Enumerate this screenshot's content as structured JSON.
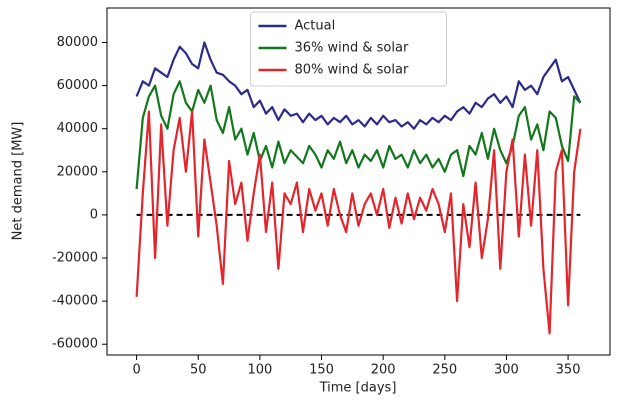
{
  "chart_data": {
    "type": "line",
    "xlabel": "Time [days]",
    "ylabel": "Net demand [MW]",
    "x": [
      0,
      5,
      10,
      15,
      20,
      25,
      30,
      35,
      40,
      45,
      50,
      55,
      60,
      65,
      70,
      75,
      80,
      85,
      90,
      95,
      100,
      105,
      110,
      115,
      120,
      125,
      130,
      135,
      140,
      145,
      150,
      155,
      160,
      165,
      170,
      175,
      180,
      185,
      190,
      195,
      200,
      205,
      210,
      215,
      220,
      225,
      230,
      235,
      240,
      245,
      250,
      255,
      260,
      265,
      270,
      275,
      280,
      285,
      290,
      295,
      300,
      305,
      310,
      315,
      320,
      325,
      330,
      335,
      340,
      345,
      350,
      355,
      360
    ],
    "series": [
      {
        "name": "Actual",
        "color": "#2b2b8c",
        "values": [
          55000,
          62000,
          60000,
          68000,
          66000,
          64000,
          72000,
          78000,
          75000,
          70000,
          68000,
          80000,
          72000,
          66000,
          65000,
          62000,
          60000,
          56000,
          58000,
          50000,
          53000,
          47000,
          50000,
          44000,
          49000,
          46000,
          47000,
          43000,
          47000,
          44000,
          46000,
          42000,
          45000,
          43000,
          46000,
          42000,
          44000,
          41000,
          45000,
          42000,
          46000,
          43000,
          44000,
          41000,
          43000,
          40000,
          44000,
          42000,
          45000,
          43000,
          46000,
          44000,
          48000,
          50000,
          47000,
          52000,
          50000,
          54000,
          56000,
          52000,
          55000,
          50000,
          62000,
          58000,
          60000,
          56000,
          64000,
          68000,
          72000,
          62000,
          64000,
          58000,
          52000
        ]
      },
      {
        "name": "36% wind & solar",
        "color": "#13781c",
        "values": [
          12000,
          45000,
          55000,
          60000,
          46000,
          40000,
          56000,
          62000,
          52000,
          48000,
          58000,
          52000,
          60000,
          44000,
          38000,
          50000,
          35000,
          40000,
          28000,
          38000,
          25000,
          32000,
          22000,
          34000,
          24000,
          30000,
          27000,
          24000,
          32000,
          28000,
          22000,
          30000,
          26000,
          34000,
          24000,
          30000,
          22000,
          28000,
          25000,
          30000,
          22000,
          32000,
          26000,
          28000,
          22000,
          30000,
          24000,
          28000,
          22000,
          26000,
          20000,
          28000,
          30000,
          18000,
          32000,
          28000,
          38000,
          26000,
          40000,
          30000,
          24000,
          32000,
          46000,
          50000,
          35000,
          42000,
          30000,
          48000,
          45000,
          32000,
          25000,
          55000,
          52000
        ]
      },
      {
        "name": "80% wind & solar",
        "color": "#e2262b",
        "values": [
          -38000,
          10000,
          48000,
          -20000,
          42000,
          -5000,
          30000,
          45000,
          20000,
          48000,
          -10000,
          35000,
          15000,
          -5000,
          -32000,
          25000,
          5000,
          15000,
          -12000,
          10000,
          28000,
          -8000,
          15000,
          -25000,
          10000,
          5000,
          15000,
          -8000,
          12000,
          2000,
          10000,
          -5000,
          12000,
          0,
          -8000,
          10000,
          -5000,
          5000,
          10000,
          0,
          12000,
          -6000,
          8000,
          -4000,
          10000,
          -2000,
          8000,
          2000,
          12000,
          5000,
          -8000,
          10000,
          -40000,
          5000,
          -15000,
          15000,
          -20000,
          -2000,
          30000,
          -25000,
          20000,
          35000,
          -10000,
          28000,
          -5000,
          30000,
          -25000,
          -55000,
          20000,
          30000,
          -42000,
          20000,
          40000
        ]
      }
    ],
    "hline": 0,
    "xlim": [
      -24,
      384
    ],
    "ylim": [
      -65000,
      96000
    ],
    "xticks": [
      0,
      50,
      100,
      150,
      200,
      250,
      300,
      350
    ],
    "yticks": [
      -60000,
      -40000,
      -20000,
      0,
      20000,
      40000,
      60000,
      80000
    ],
    "legend": "upper center"
  }
}
